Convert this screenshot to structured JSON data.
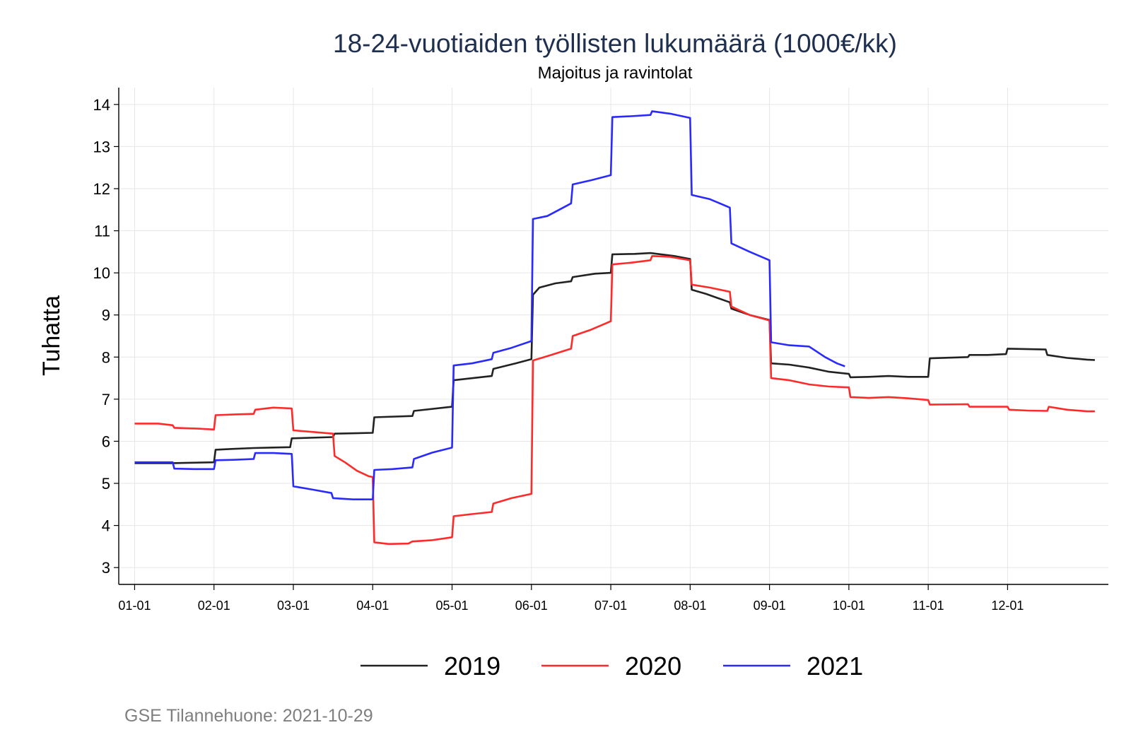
{
  "chart_data": {
    "type": "line",
    "title": "18-24-vuotiaiden työllisten lukumäärä (1000€/kk)",
    "subtitle": "Majoitus ja ravintolat",
    "ylabel": "Tuhatta",
    "xlabel": "",
    "ylim": [
      2.6,
      14.4
    ],
    "xlim": [
      -0.2,
      12.27
    ],
    "yticks": [
      "3",
      "4",
      "5",
      "6",
      "7",
      "8",
      "9",
      "10",
      "11",
      "12",
      "13",
      "14"
    ],
    "xticks": [
      "01-01",
      "02-01",
      "03-01",
      "04-01",
      "05-01",
      "06-01",
      "07-01",
      "08-01",
      "09-01",
      "10-01",
      "11-01",
      "12-01"
    ],
    "grid": true,
    "legend_position": "bottom",
    "caption": "GSE Tilannehuone: 2021-10-29",
    "series": [
      {
        "name": "2019",
        "color": "#222222",
        "points": [
          [
            0.0,
            5.48
          ],
          [
            0.48,
            5.48
          ],
          [
            1.0,
            5.5
          ],
          [
            1.02,
            5.8
          ],
          [
            1.25,
            5.82
          ],
          [
            1.5,
            5.84
          ],
          [
            1.96,
            5.86
          ],
          [
            1.98,
            6.07
          ],
          [
            2.5,
            6.1
          ],
          [
            2.52,
            6.18
          ],
          [
            3.0,
            6.2
          ],
          [
            3.02,
            6.57
          ],
          [
            3.5,
            6.6
          ],
          [
            3.52,
            6.72
          ],
          [
            4.0,
            6.82
          ],
          [
            4.02,
            7.45
          ],
          [
            4.35,
            7.52
          ],
          [
            4.5,
            7.55
          ],
          [
            4.52,
            7.72
          ],
          [
            4.8,
            7.85
          ],
          [
            5.0,
            7.95
          ],
          [
            5.02,
            9.48
          ],
          [
            5.1,
            9.65
          ],
          [
            5.3,
            9.75
          ],
          [
            5.5,
            9.8
          ],
          [
            5.52,
            9.9
          ],
          [
            5.8,
            9.98
          ],
          [
            6.0,
            10.0
          ],
          [
            6.02,
            10.44
          ],
          [
            6.3,
            10.45
          ],
          [
            6.5,
            10.47
          ],
          [
            6.8,
            10.4
          ],
          [
            7.0,
            10.33
          ],
          [
            7.02,
            9.6
          ],
          [
            7.2,
            9.5
          ],
          [
            7.35,
            9.4
          ],
          [
            7.5,
            9.3
          ],
          [
            7.52,
            9.15
          ],
          [
            7.75,
            9.0
          ],
          [
            8.0,
            8.88
          ],
          [
            8.02,
            7.85
          ],
          [
            8.25,
            7.82
          ],
          [
            8.5,
            7.75
          ],
          [
            8.75,
            7.65
          ],
          [
            9.0,
            7.6
          ],
          [
            9.02,
            7.52
          ],
          [
            9.25,
            7.53
          ],
          [
            9.5,
            7.55
          ],
          [
            9.75,
            7.53
          ],
          [
            10.0,
            7.53
          ],
          [
            10.02,
            7.97
          ],
          [
            10.5,
            8.0
          ],
          [
            10.52,
            8.05
          ],
          [
            10.75,
            8.05
          ],
          [
            10.98,
            8.07
          ],
          [
            11.0,
            8.2
          ],
          [
            11.48,
            8.18
          ],
          [
            11.5,
            8.05
          ],
          [
            11.75,
            7.98
          ],
          [
            12.0,
            7.94
          ],
          [
            12.1,
            7.93
          ]
        ]
      },
      {
        "name": "2020",
        "color": "#ff2a2a",
        "points": [
          [
            0.0,
            6.42
          ],
          [
            0.3,
            6.42
          ],
          [
            0.48,
            6.38
          ],
          [
            0.5,
            6.32
          ],
          [
            0.8,
            6.3
          ],
          [
            1.0,
            6.28
          ],
          [
            1.02,
            6.62
          ],
          [
            1.3,
            6.64
          ],
          [
            1.5,
            6.65
          ],
          [
            1.52,
            6.75
          ],
          [
            1.75,
            6.8
          ],
          [
            1.98,
            6.78
          ],
          [
            2.0,
            6.26
          ],
          [
            2.25,
            6.22
          ],
          [
            2.5,
            6.18
          ],
          [
            2.52,
            5.65
          ],
          [
            2.65,
            5.5
          ],
          [
            2.8,
            5.3
          ],
          [
            2.95,
            5.17
          ],
          [
            3.0,
            5.15
          ],
          [
            3.02,
            3.6
          ],
          [
            3.2,
            3.56
          ],
          [
            3.45,
            3.57
          ],
          [
            3.5,
            3.62
          ],
          [
            3.75,
            3.65
          ],
          [
            4.0,
            3.72
          ],
          [
            4.02,
            4.22
          ],
          [
            4.25,
            4.27
          ],
          [
            4.5,
            4.32
          ],
          [
            4.52,
            4.52
          ],
          [
            4.75,
            4.65
          ],
          [
            5.0,
            4.75
          ],
          [
            5.02,
            7.92
          ],
          [
            5.25,
            8.05
          ],
          [
            5.5,
            8.2
          ],
          [
            5.52,
            8.5
          ],
          [
            5.75,
            8.65
          ],
          [
            6.0,
            8.85
          ],
          [
            6.02,
            10.2
          ],
          [
            6.25,
            10.24
          ],
          [
            6.5,
            10.3
          ],
          [
            6.52,
            10.4
          ],
          [
            6.75,
            10.38
          ],
          [
            7.0,
            10.3
          ],
          [
            7.02,
            9.72
          ],
          [
            7.25,
            9.65
          ],
          [
            7.5,
            9.55
          ],
          [
            7.52,
            9.2
          ],
          [
            7.75,
            9.0
          ],
          [
            8.0,
            8.87
          ],
          [
            8.02,
            7.5
          ],
          [
            8.25,
            7.45
          ],
          [
            8.5,
            7.35
          ],
          [
            8.75,
            7.3
          ],
          [
            9.0,
            7.28
          ],
          [
            9.02,
            7.05
          ],
          [
            9.25,
            7.03
          ],
          [
            9.5,
            7.05
          ],
          [
            9.75,
            7.02
          ],
          [
            10.0,
            6.98
          ],
          [
            10.02,
            6.87
          ],
          [
            10.5,
            6.88
          ],
          [
            10.52,
            6.82
          ],
          [
            10.75,
            6.82
          ],
          [
            11.0,
            6.82
          ],
          [
            11.02,
            6.75
          ],
          [
            11.25,
            6.73
          ],
          [
            11.5,
            6.72
          ],
          [
            11.52,
            6.82
          ],
          [
            11.75,
            6.75
          ],
          [
            12.0,
            6.71
          ],
          [
            12.1,
            6.71
          ]
        ]
      },
      {
        "name": "2021",
        "color": "#2a2aff",
        "points": [
          [
            0.0,
            5.5
          ],
          [
            0.48,
            5.5
          ],
          [
            0.5,
            5.35
          ],
          [
            0.75,
            5.34
          ],
          [
            1.0,
            5.34
          ],
          [
            1.02,
            5.55
          ],
          [
            1.25,
            5.56
          ],
          [
            1.5,
            5.58
          ],
          [
            1.52,
            5.72
          ],
          [
            1.75,
            5.72
          ],
          [
            1.98,
            5.7
          ],
          [
            2.0,
            4.93
          ],
          [
            2.25,
            4.85
          ],
          [
            2.48,
            4.77
          ],
          [
            2.5,
            4.65
          ],
          [
            2.75,
            4.62
          ],
          [
            3.0,
            4.62
          ],
          [
            3.02,
            5.32
          ],
          [
            3.25,
            5.34
          ],
          [
            3.5,
            5.38
          ],
          [
            3.52,
            5.58
          ],
          [
            3.75,
            5.73
          ],
          [
            4.0,
            5.85
          ],
          [
            4.02,
            7.8
          ],
          [
            4.25,
            7.85
          ],
          [
            4.5,
            7.95
          ],
          [
            4.52,
            8.1
          ],
          [
            4.75,
            8.22
          ],
          [
            5.0,
            8.38
          ],
          [
            5.02,
            11.28
          ],
          [
            5.2,
            11.35
          ],
          [
            5.35,
            11.5
          ],
          [
            5.5,
            11.65
          ],
          [
            5.52,
            12.1
          ],
          [
            5.75,
            12.2
          ],
          [
            6.0,
            12.32
          ],
          [
            6.02,
            13.7
          ],
          [
            6.25,
            13.72
          ],
          [
            6.5,
            13.75
          ],
          [
            6.52,
            13.84
          ],
          [
            6.75,
            13.78
          ],
          [
            7.0,
            13.68
          ],
          [
            7.02,
            11.85
          ],
          [
            7.25,
            11.75
          ],
          [
            7.5,
            11.55
          ],
          [
            7.52,
            10.7
          ],
          [
            7.75,
            10.5
          ],
          [
            8.0,
            10.3
          ],
          [
            8.02,
            8.35
          ],
          [
            8.25,
            8.28
          ],
          [
            8.5,
            8.25
          ],
          [
            8.7,
            8.0
          ],
          [
            8.85,
            7.85
          ],
          [
            8.95,
            7.78
          ]
        ]
      }
    ]
  }
}
